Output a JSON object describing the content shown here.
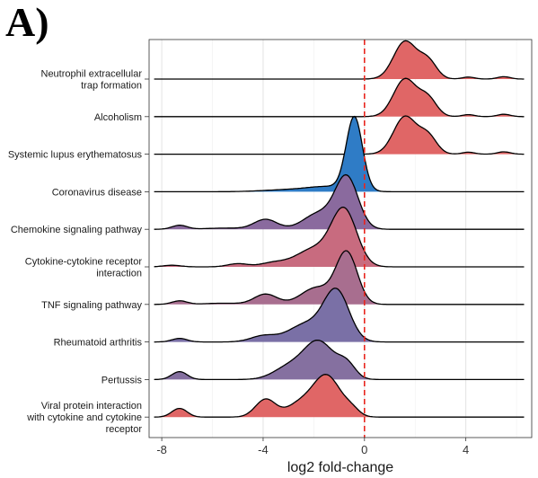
{
  "panel_label": "A)",
  "chart_data": {
    "type": "ridgeline",
    "xlabel": "log2 fold-change",
    "xlim": [
      -8.5,
      6.6
    ],
    "xticks": [
      -8,
      -4,
      0,
      4
    ],
    "xtick_labels": [
      "-8",
      "-4",
      "0",
      "4"
    ],
    "reference_line": {
      "x": 0,
      "style": "dashed",
      "color": "#e8261f"
    },
    "grid": true,
    "fill_scale": {
      "positive": "#e06666",
      "negative": "#2f7cc6"
    },
    "series": [
      {
        "label": "Neutrophil extracellular trap formation",
        "label_lines": [
          "Neutrophil extracellular",
          "trap formation"
        ],
        "mean_log2fc": 2.2,
        "fill": "#e06666",
        "peaks": [
          [
            1.6,
            0.95,
            0.45
          ],
          [
            2.5,
            0.45,
            0.35
          ],
          [
            4.1,
            0.05,
            0.25
          ],
          [
            5.5,
            0.06,
            0.25
          ]
        ]
      },
      {
        "label": "Alcoholism",
        "label_lines": [
          "Alcoholism"
        ],
        "mean_log2fc": 2.1,
        "fill": "#e06666",
        "peaks": [
          [
            1.6,
            0.95,
            0.45
          ],
          [
            2.5,
            0.45,
            0.35
          ],
          [
            4.1,
            0.05,
            0.25
          ],
          [
            5.5,
            0.06,
            0.25
          ]
        ]
      },
      {
        "label": "Systemic lupus erythematosus",
        "label_lines": [
          "Systemic lupus erythematosus"
        ],
        "mean_log2fc": 2.0,
        "fill": "#e06666",
        "peaks": [
          [
            1.6,
            0.95,
            0.45
          ],
          [
            2.5,
            0.45,
            0.35
          ],
          [
            4.1,
            0.05,
            0.25
          ],
          [
            5.5,
            0.06,
            0.25
          ]
        ]
      },
      {
        "label": "Coronavirus disease",
        "label_lines": [
          "Coronavirus disease"
        ],
        "mean_log2fc": -0.6,
        "fill": "#2f7cc6",
        "peaks": [
          [
            -0.4,
            1.85,
            0.32
          ],
          [
            -1.4,
            0.12,
            0.8
          ],
          [
            -3.0,
            0.05,
            1.0
          ]
        ]
      },
      {
        "label": "Chemokine signaling pathway",
        "label_lines": [
          "Chemokine signaling pathway"
        ],
        "mean_log2fc": -1.8,
        "fill": "#8a6a9e",
        "peaks": [
          [
            -0.7,
            1.3,
            0.45
          ],
          [
            -1.8,
            0.4,
            0.6
          ],
          [
            -3.9,
            0.25,
            0.45
          ],
          [
            -7.3,
            0.1,
            0.3
          ],
          [
            -5.5,
            0.03,
            0.8
          ]
        ]
      },
      {
        "label": "Cytokine-cytokine receptor interaction",
        "label_lines": [
          "Cytokine-cytokine receptor",
          "interaction"
        ],
        "mean_log2fc": -1.5,
        "fill": "#c86b7f",
        "peaks": [
          [
            -0.8,
            1.4,
            0.5
          ],
          [
            -2.0,
            0.45,
            0.7
          ],
          [
            -3.6,
            0.1,
            0.5
          ],
          [
            -5.0,
            0.08,
            0.4
          ],
          [
            -7.6,
            0.04,
            0.35
          ]
        ]
      },
      {
        "label": "TNF signaling pathway",
        "label_lines": [
          "TNF signaling pathway"
        ],
        "mean_log2fc": -1.9,
        "fill": "#a86e8f",
        "peaks": [
          [
            -0.7,
            1.3,
            0.42
          ],
          [
            -1.9,
            0.42,
            0.6
          ],
          [
            -3.9,
            0.26,
            0.45
          ],
          [
            -7.3,
            0.09,
            0.3
          ],
          [
            -5.6,
            0.03,
            0.7
          ]
        ]
      },
      {
        "label": "Rheumatoid arthritis",
        "label_lines": [
          "Rheumatoid arthritis"
        ],
        "mean_log2fc": -2.2,
        "fill": "#7a70a6",
        "peaks": [
          [
            -1.1,
            1.25,
            0.5
          ],
          [
            -2.3,
            0.45,
            0.7
          ],
          [
            -4.0,
            0.15,
            0.5
          ],
          [
            -7.3,
            0.09,
            0.3
          ]
        ]
      },
      {
        "label": "Pertussis",
        "label_lines": [
          "Pertussis"
        ],
        "mean_log2fc": -2.4,
        "fill": "#8570a0",
        "peaks": [
          [
            -1.8,
            0.95,
            0.6
          ],
          [
            -0.7,
            0.35,
            0.35
          ],
          [
            -3.0,
            0.3,
            0.6
          ],
          [
            -7.3,
            0.2,
            0.3
          ]
        ]
      },
      {
        "label": "Viral protein interaction with cytokine and cytokine receptor",
        "label_lines": [
          "Viral protein interaction",
          "with cytokine and cytokine",
          "receptor"
        ],
        "mean_log2fc": 1.5,
        "fill": "#e06666",
        "peaks": [
          [
            -1.5,
            1.05,
            0.55
          ],
          [
            -2.6,
            0.3,
            0.5
          ],
          [
            -3.9,
            0.45,
            0.4
          ],
          [
            -7.3,
            0.22,
            0.3
          ],
          [
            -0.5,
            0.15,
            0.3
          ]
        ]
      }
    ]
  }
}
